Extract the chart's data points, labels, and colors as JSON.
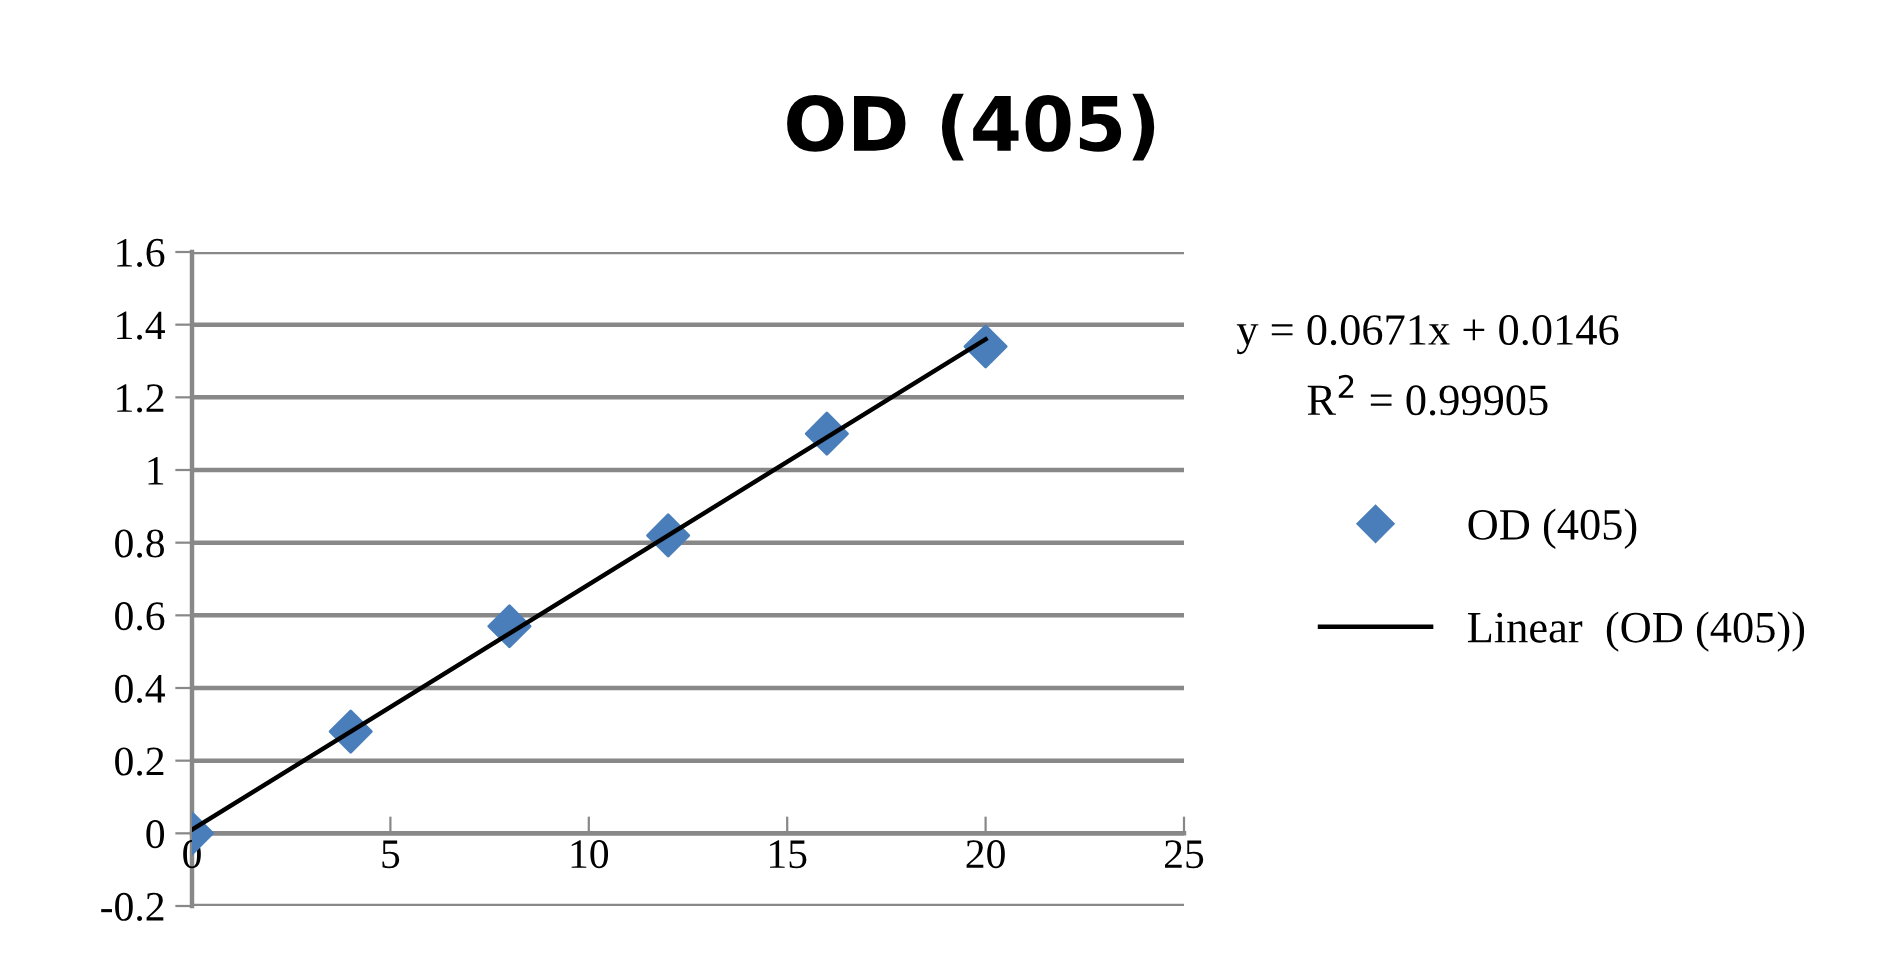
{
  "chart_data": {
    "type": "scatter",
    "title": "OD (405)",
    "x": [
      0,
      4,
      8,
      12,
      16,
      20
    ],
    "series": [
      {
        "name": "OD (405)",
        "color": "#4a7ebb",
        "marker": "diamond",
        "values": [
          0.0,
          0.28,
          0.57,
          0.82,
          1.1,
          1.34
        ]
      },
      {
        "name": "Linear  (OD (405))",
        "type": "line",
        "color": "#000000",
        "marker": "none",
        "line_style": "solid",
        "x": [
          0,
          20
        ],
        "values": [
          0.01,
          1.36
        ]
      }
    ],
    "xlim": [
      0,
      25
    ],
    "xticks": [
      0,
      5,
      10,
      15,
      20,
      25
    ],
    "ylim": [
      -0.2,
      1.6
    ],
    "yticks": [
      -0.2,
      0,
      0.2,
      0.4,
      0.6,
      0.8,
      1,
      1.2,
      1.4,
      1.6
    ],
    "grid": "y",
    "legend": "right",
    "annotations": [
      "y = 0.0671x + 0.0146",
      "R$^{2}$ = 0.99905"
    ]
  }
}
